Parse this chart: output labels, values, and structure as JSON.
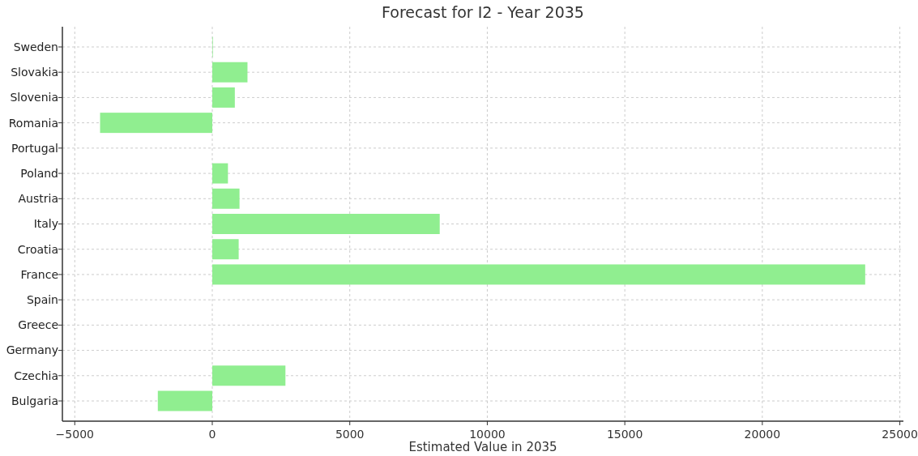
{
  "chart_data": {
    "type": "bar",
    "orientation": "horizontal",
    "title": "Forecast for I2 - Year 2035",
    "xlabel": "Estimated Value in 2035",
    "categories": [
      "Sweden",
      "Slovakia",
      "Slovenia",
      "Romania",
      "Portugal",
      "Poland",
      "Austria",
      "Italy",
      "Croatia",
      "France",
      "Spain",
      "Greece",
      "Germany",
      "Czechia",
      "Bulgaria"
    ],
    "values": [
      20,
      1280,
      820,
      -4080,
      0,
      570,
      990,
      8270,
      960,
      23740,
      0,
      0,
      0,
      2660,
      -1980
    ],
    "color": "#90ee90",
    "xlim": [
      -5450,
      25130
    ],
    "xticks": [
      -5000,
      0,
      5000,
      10000,
      15000,
      20000,
      25000
    ],
    "grid": true
  }
}
